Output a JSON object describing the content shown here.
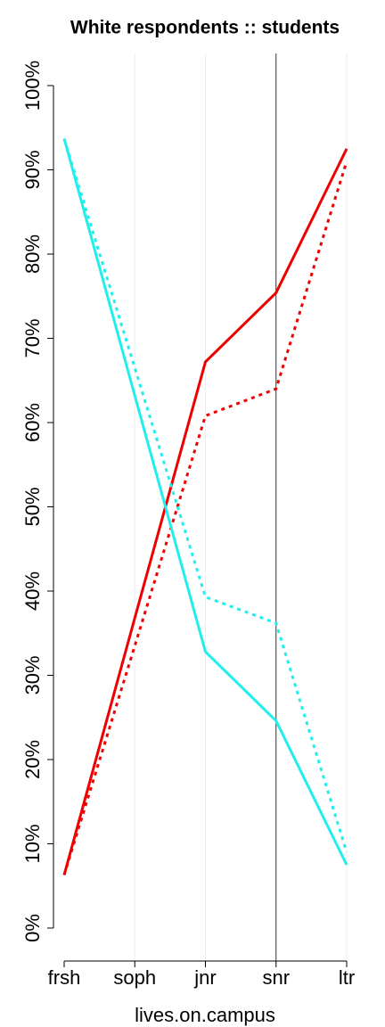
{
  "chart_data": {
    "type": "line",
    "title": "White respondents :: students",
    "x_label": "lives.on.campus",
    "categories": [
      "frsh",
      "soph",
      "jnr",
      "snr",
      "ltr"
    ],
    "series": [
      {
        "color": "#ee0000",
        "dash": "solid",
        "values": [
          6.3,
          36.8,
          67.2,
          75.4,
          92.5
        ]
      },
      {
        "color": "#ee0000",
        "dash": "dotted",
        "values": [
          6.3,
          33.5,
          60.8,
          64.0,
          91.0
        ]
      },
      {
        "color": "#22eeee",
        "dash": "solid",
        "values": [
          93.7,
          63.2,
          32.8,
          24.6,
          7.5
        ]
      },
      {
        "color": "#22eeee",
        "dash": "dotted",
        "values": [
          93.7,
          66.5,
          39.3,
          36.2,
          9.0
        ]
      }
    ],
    "ylim": [
      0,
      100
    ],
    "yticks": [
      {
        "value": 0,
        "label": "0%"
      },
      {
        "value": 10,
        "label": "10%"
      },
      {
        "value": 20,
        "label": "20%"
      },
      {
        "value": 30,
        "label": "30%"
      },
      {
        "value": 40,
        "label": "40%"
      },
      {
        "value": 50,
        "label": "50%"
      },
      {
        "value": 60,
        "label": "60%"
      },
      {
        "value": 70,
        "label": "70%"
      },
      {
        "value": 80,
        "label": "80%"
      },
      {
        "value": 90,
        "label": "90%"
      },
      {
        "value": 100,
        "label": "100%"
      }
    ],
    "grid": true,
    "reference_line_at": "snr"
  }
}
